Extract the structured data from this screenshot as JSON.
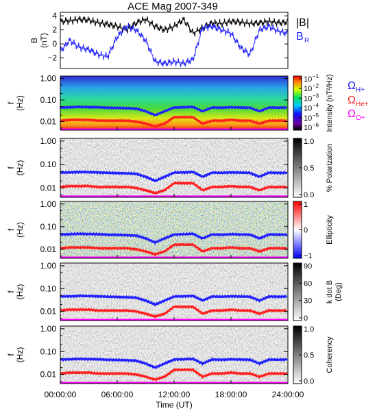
{
  "title": "ACE Mag 2007-349",
  "colors": {
    "B_total": "#000000",
    "B_R": "#1f1fff",
    "omega_H": "#1f1fff",
    "omega_He": "#ff1f1f",
    "omega_O": "#ff00ff"
  },
  "chart_data": [
    {
      "type": "line",
      "panel": "magnetic field",
      "ylabel": [
        "B",
        "(nT)"
      ],
      "yticks": [
        "4",
        "2",
        "0",
        "−2"
      ],
      "ylim": [
        -3.5,
        4.5
      ],
      "x": [
        0,
        1,
        2,
        3,
        4,
        5,
        6,
        7,
        8,
        9,
        10,
        11,
        12,
        13,
        14,
        15,
        16,
        17,
        18,
        19,
        20,
        21,
        22,
        23,
        24
      ],
      "series": [
        {
          "name": "|B|",
          "values": [
            3.2,
            3.3,
            3.5,
            3.4,
            3.0,
            2.8,
            2.5,
            2.0,
            3.0,
            3.5,
            2.5,
            2.0,
            2.5,
            3.5,
            1.5,
            2.3,
            3.0,
            2.9,
            3.2,
            3.1,
            2.9,
            3.0,
            3.2,
            3.0,
            3.1
          ]
        },
        {
          "name": "B_R",
          "values": [
            -1.0,
            0.5,
            -0.5,
            -0.8,
            -1.5,
            -1.8,
            1.0,
            2.5,
            2.0,
            0.5,
            -2.5,
            -2.8,
            -2.5,
            -2.8,
            -2.2,
            2.3,
            2.5,
            2.0,
            1.5,
            -0.5,
            -1.5,
            2.0,
            2.5,
            1.8,
            1.5
          ]
        }
      ],
      "legend": [
        {
          "main": "|B|",
          "sub": ""
        },
        {
          "main": "B",
          "sub": "R"
        }
      ]
    },
    {
      "type": "heatmap",
      "panel": "power spectrum",
      "ylabel": [
        "f",
        "(Hz)"
      ],
      "yticks": [
        "1.00",
        "0.10",
        "0.01"
      ],
      "ylim": [
        0.004,
        1.3
      ],
      "colorbar": {
        "label": "Intensity (nT²/Hz)",
        "ticks": [
          {
            "base": "10",
            "exp": "−1"
          },
          {
            "base": "10",
            "exp": "−2"
          },
          {
            "base": "10",
            "exp": "−3"
          },
          {
            "base": "10",
            "exp": "−4"
          },
          {
            "base": "10",
            "exp": "−5"
          },
          {
            "base": "10",
            "exp": "−6"
          }
        ]
      }
    },
    {
      "type": "heatmap",
      "panel": "polarization",
      "ylabel": [
        "f",
        "(Hz)"
      ],
      "yticks": [
        "1.00",
        "0.10",
        "0.01"
      ],
      "colorbar": {
        "label": "% Polarization",
        "ticks": [
          "1.0",
          "0.5",
          "0.0"
        ]
      }
    },
    {
      "type": "heatmap",
      "panel": "ellipticity",
      "ylabel": [
        "f",
        "(Hz)"
      ],
      "yticks": [
        "1.00",
        "0.10",
        "0.01"
      ],
      "colorbar": {
        "label": "Ellipticity",
        "ticks": [
          "1",
          "0",
          "−1"
        ]
      }
    },
    {
      "type": "heatmap",
      "panel": "wave normal angle",
      "ylabel": [
        "f",
        "(Hz)"
      ],
      "yticks": [
        "1.00",
        "0.10",
        "0.01"
      ],
      "colorbar": {
        "label": "k dot B",
        "label2": "(Deg)",
        "ticks": [
          "90",
          "60",
          "30",
          "0"
        ]
      }
    },
    {
      "type": "heatmap",
      "panel": "coherency",
      "ylabel": [
        "f",
        "(Hz)"
      ],
      "yticks": [
        "1.00",
        "0.10",
        "0.01"
      ],
      "colorbar": {
        "label": "Coherency",
        "ticks": [
          "1.0",
          "0.5",
          "0.0"
        ]
      }
    }
  ],
  "gyrofrequency_legend": [
    {
      "main": "Ω",
      "sub": "H+"
    },
    {
      "main": "Ω",
      "sub": "He+"
    },
    {
      "main": "Ω",
      "sub": "O+"
    }
  ],
  "gyrofrequency_lines": {
    "x": [
      0,
      1,
      2,
      3,
      4,
      5,
      6,
      7,
      8,
      9,
      10,
      11,
      12,
      13,
      14,
      15,
      16,
      17,
      18,
      19,
      20,
      21,
      22,
      23,
      24
    ],
    "omega_H": [
      0.045,
      0.046,
      0.048,
      0.047,
      0.046,
      0.044,
      0.043,
      0.042,
      0.04,
      0.03,
      0.02,
      0.03,
      0.045,
      0.046,
      0.048,
      0.03,
      0.045,
      0.044,
      0.046,
      0.045,
      0.044,
      0.03,
      0.045,
      0.044,
      0.045
    ],
    "omega_He": [
      0.011,
      0.012,
      0.012,
      0.012,
      0.011,
      0.011,
      0.011,
      0.011,
      0.01,
      0.008,
      0.006,
      0.008,
      0.016,
      0.016,
      0.016,
      0.008,
      0.011,
      0.011,
      0.012,
      0.011,
      0.011,
      0.008,
      0.011,
      0.011,
      0.011
    ],
    "omega_O": 0.0043
  },
  "xaxis": {
    "ticks": [
      "00:00:00",
      "06:00:00",
      "12:00:00",
      "18:00:00",
      "24:00:00"
    ],
    "label": "Time (UT)",
    "range": [
      0,
      24
    ]
  }
}
